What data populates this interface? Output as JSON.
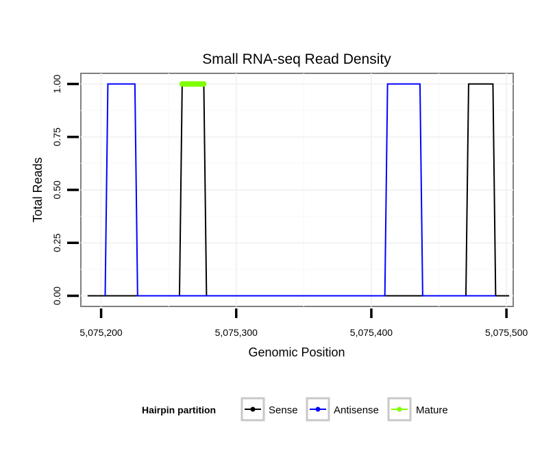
{
  "chart_data": {
    "type": "line",
    "title": "Small RNA-seq Read Density",
    "xlabel": "Genomic Position",
    "ylabel": "Total Reads",
    "xlim": [
      5075185,
      5075505
    ],
    "ylim": [
      -0.05,
      1.05
    ],
    "x_ticks": [
      5075200,
      5075300,
      5075400,
      5075500
    ],
    "x_tick_labels": [
      "5,075,200",
      "5,075,300",
      "5,075,400",
      "5,075,500"
    ],
    "y_ticks": [
      0,
      0.25,
      0.5,
      0.75,
      1.0
    ],
    "y_tick_labels": [
      "0.00",
      "0.25",
      "0.50",
      "0.75",
      "1.00"
    ],
    "grid": true,
    "legend": {
      "title": "Hairpin partition",
      "position": "bottom",
      "entries": [
        "Sense",
        "Antisense",
        "Mature"
      ]
    },
    "colors": {
      "Sense": "#000000",
      "Antisense": "#0000ff",
      "Mature": "#7fff00"
    },
    "series": [
      {
        "name": "Sense",
        "points": [
          [
            5075190,
            0
          ],
          [
            5075258,
            0
          ],
          [
            5075260,
            1
          ],
          [
            5075276,
            1
          ],
          [
            5075278,
            0
          ],
          [
            5075470,
            0
          ],
          [
            5075472,
            1
          ],
          [
            5075490,
            1
          ],
          [
            5075492,
            0
          ],
          [
            5075502,
            0
          ]
        ]
      },
      {
        "name": "Antisense",
        "points": [
          [
            5075203,
            0
          ],
          [
            5075205,
            1
          ],
          [
            5075225,
            1
          ],
          [
            5075227,
            0
          ],
          [
            5075258,
            0
          ],
          [
            5075276,
            0
          ],
          [
            5075410,
            0
          ],
          [
            5075412,
            1
          ],
          [
            5075436,
            1
          ],
          [
            5075438,
            0
          ],
          [
            5075470,
            0
          ],
          [
            5075492,
            0
          ]
        ]
      },
      {
        "name": "Mature",
        "points": [
          [
            5075260,
            1
          ],
          [
            5075276,
            1
          ]
        ]
      }
    ]
  }
}
